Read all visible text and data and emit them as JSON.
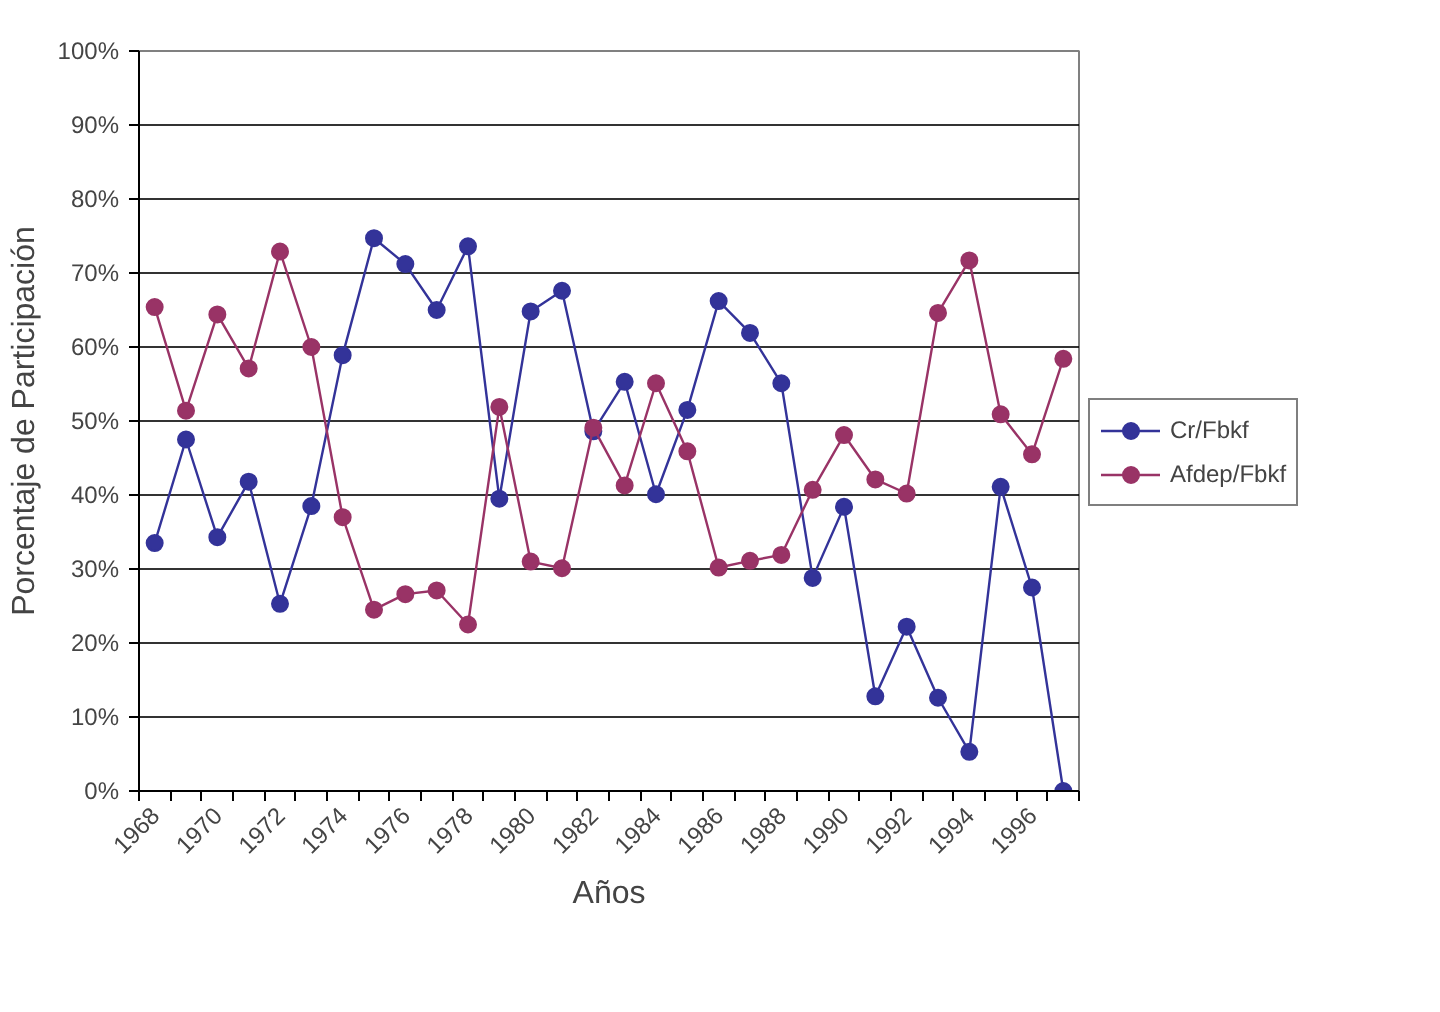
{
  "chart_data": {
    "type": "line",
    "xlabel": "Años",
    "ylabel": "Porcentaje de Participación",
    "categories": [
      "1968",
      null,
      "1970",
      null,
      "1972",
      null,
      "1974",
      null,
      "1976",
      null,
      "1978",
      null,
      "1980",
      null,
      "1982",
      null,
      "1984",
      null,
      "1986",
      null,
      "1988",
      null,
      "1990",
      null,
      "1992",
      null,
      "1994",
      null,
      "1996",
      null
    ],
    "series": [
      {
        "name": "Cr/Fbkf",
        "color": "#333399",
        "values": [
          33.5,
          47.5,
          34.3,
          41.8,
          25.3,
          38.5,
          58.9,
          74.7,
          71.2,
          65.0,
          73.6,
          39.5,
          64.8,
          67.6,
          48.6,
          55.3,
          40.1,
          51.5,
          66.2,
          61.9,
          55.1,
          28.8,
          38.4,
          12.8,
          22.2,
          12.6,
          5.3,
          41.1,
          27.5,
          0
        ]
      },
      {
        "name": "Afdep/Fbkf",
        "color": "#993366",
        "values": [
          65.4,
          51.4,
          64.4,
          57.1,
          72.9,
          60.0,
          37.0,
          24.5,
          26.6,
          27.1,
          22.5,
          51.9,
          31.0,
          30.1,
          49.1,
          41.3,
          55.1,
          45.9,
          30.2,
          31.1,
          31.9,
          40.7,
          48.1,
          42.1,
          40.2,
          64.6,
          71.7,
          50.9,
          45.5,
          58.4
        ]
      }
    ],
    "ylim": [
      0,
      100
    ],
    "yticks": [
      {
        "value": 0,
        "label": "0%"
      },
      {
        "value": 10,
        "label": "10%"
      },
      {
        "value": 20,
        "label": "20%"
      },
      {
        "value": 30,
        "label": "30%"
      },
      {
        "value": 40,
        "label": "40%"
      },
      {
        "value": 50,
        "label": "50%"
      },
      {
        "value": 60,
        "label": "60%"
      },
      {
        "value": 70,
        "label": "70%"
      },
      {
        "value": 80,
        "label": "80%"
      },
      {
        "value": 90,
        "label": "90%"
      },
      {
        "value": 100,
        "label": "100%"
      }
    ],
    "grid": "y",
    "legend": "right",
    "marker": "circle",
    "line_style": "solid"
  }
}
